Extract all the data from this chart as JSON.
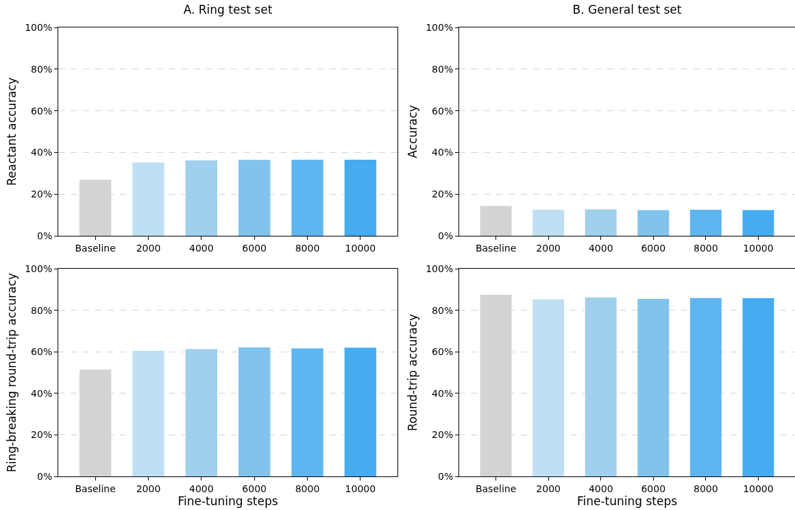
{
  "chart_data": [
    {
      "type": "bar",
      "title": "A. Ring test set",
      "ylabel": "Reactant accuracy",
      "categories": [
        "Baseline",
        "2000",
        "4000",
        "6000",
        "8000",
        "10000"
      ],
      "values": [
        26.9,
        35.2,
        36.2,
        36.4,
        36.5,
        36.5
      ],
      "colors": [
        "#d3d3d3",
        "#bee0f2",
        "#a0d0ed",
        "#80c3ed",
        "#5eb6f1",
        "#45acf0"
      ],
      "ylim": [
        0,
        100
      ],
      "yticks": [
        {
          "value": 0,
          "label": "0%"
        },
        {
          "value": 20,
          "label": "20%"
        },
        {
          "value": 40,
          "label": "40%"
        },
        {
          "value": 60,
          "label": "60%"
        },
        {
          "value": 80,
          "label": "80%"
        },
        {
          "value": 100,
          "label": "100%"
        }
      ],
      "grid": "y"
    },
    {
      "type": "bar",
      "title": "B. General test set",
      "ylabel": "Accuracy",
      "categories": [
        "Baseline",
        "2000",
        "4000",
        "6000",
        "8000",
        "10000"
      ],
      "values": [
        14.3,
        12.5,
        12.7,
        12.3,
        12.5,
        12.3
      ],
      "colors": [
        "#d3d3d3",
        "#bee0f2",
        "#a0d0ed",
        "#80c3ed",
        "#5eb6f1",
        "#45acf0"
      ],
      "ylim": [
        0,
        100
      ],
      "yticks": [
        {
          "value": 0,
          "label": "0%"
        },
        {
          "value": 20,
          "label": "20%"
        },
        {
          "value": 40,
          "label": "40%"
        },
        {
          "value": 60,
          "label": "60%"
        },
        {
          "value": 80,
          "label": "80%"
        },
        {
          "value": 100,
          "label": "100%"
        }
      ],
      "grid": "y"
    },
    {
      "type": "bar",
      "xlabel": "Fine-tuning steps",
      "ylabel": "Ring-breaking round-trip accuracy",
      "categories": [
        "Baseline",
        "2000",
        "4000",
        "6000",
        "8000",
        "10000"
      ],
      "values": [
        51.4,
        60.5,
        61.3,
        62.1,
        61.6,
        62.0
      ],
      "colors": [
        "#d3d3d3",
        "#bee0f2",
        "#a0d0ed",
        "#80c3ed",
        "#5eb6f1",
        "#45acf0"
      ],
      "ylim": [
        0,
        100
      ],
      "yticks": [
        {
          "value": 0,
          "label": "0%"
        },
        {
          "value": 20,
          "label": "20%"
        },
        {
          "value": 40,
          "label": "40%"
        },
        {
          "value": 60,
          "label": "60%"
        },
        {
          "value": 80,
          "label": "80%"
        },
        {
          "value": 100,
          "label": "100%"
        }
      ],
      "grid": "y"
    },
    {
      "type": "bar",
      "xlabel": "Fine-tuning steps",
      "ylabel": "Round-trip accuracy",
      "categories": [
        "Baseline",
        "2000",
        "4000",
        "6000",
        "8000",
        "10000"
      ],
      "values": [
        87.5,
        85.2,
        86.1,
        85.5,
        85.9,
        85.8
      ],
      "colors": [
        "#d3d3d3",
        "#bee0f2",
        "#a0d0ed",
        "#80c3ed",
        "#5eb6f1",
        "#45acf0"
      ],
      "ylim": [
        0,
        100
      ],
      "yticks": [
        {
          "value": 0,
          "label": "0%"
        },
        {
          "value": 20,
          "label": "20%"
        },
        {
          "value": 40,
          "label": "40%"
        },
        {
          "value": 60,
          "label": "60%"
        },
        {
          "value": 80,
          "label": "80%"
        },
        {
          "value": 100,
          "label": "100%"
        }
      ],
      "grid": "y"
    }
  ]
}
